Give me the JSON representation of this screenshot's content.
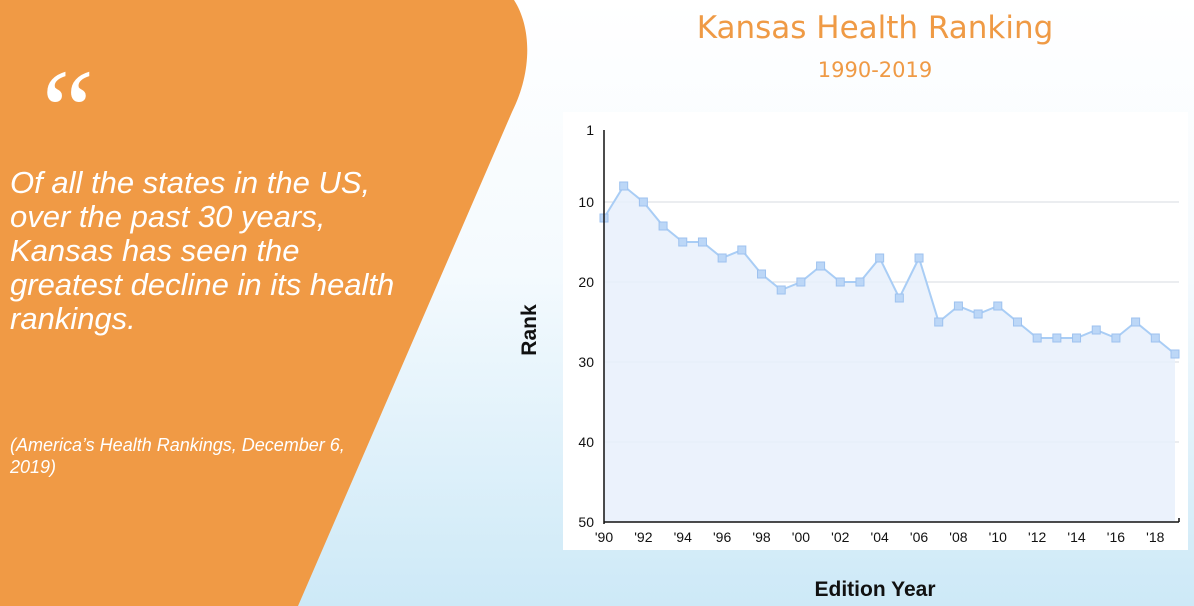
{
  "colors": {
    "accent_orange": "#f09a45",
    "title_orange": "#ef9a45",
    "line_blue": "#a9cdf5",
    "marker_blue": "#bcd7f7",
    "area_blue": "#e7f0fc"
  },
  "quote": {
    "mark": "“",
    "text": "Of all the states in the US, over the past 30 years, Kansas has seen the greatest decline in its health rankings.",
    "source": "(America’s Health Rankings, December 6, 2019)"
  },
  "chart_data": {
    "type": "area",
    "title": "Kansas Health Ranking",
    "subtitle": "1990-2019",
    "xlabel": "Edition Year",
    "ylabel": "Rank",
    "y_inverted": true,
    "ylim": [
      1,
      50
    ],
    "y_ticks": [
      "1",
      "10",
      "20",
      "30",
      "40",
      "50"
    ],
    "xlim": [
      1990,
      2019
    ],
    "x_ticks": [
      "'90",
      "'92",
      "'94",
      "'96",
      "'98",
      "'00",
      "'02",
      "'04",
      "'06",
      "'08",
      "'10",
      "'12",
      "'14",
      "'16",
      "'18"
    ],
    "grid": true,
    "series": [
      {
        "x": [
          1990,
          1991,
          1992,
          1993,
          1994,
          1995,
          1996,
          1997,
          1998,
          1999,
          2000,
          2001,
          2002,
          2003,
          2004,
          2005,
          2006,
          2007,
          2008,
          2009,
          2010,
          2011,
          2012,
          2013,
          2014,
          2015,
          2016,
          2017,
          2018,
          2019
        ],
        "values": [
          12,
          8,
          10,
          13,
          15,
          15,
          17,
          16,
          19,
          21,
          20,
          18,
          20,
          20,
          17,
          22,
          17,
          25,
          23,
          24,
          23,
          25,
          27,
          27,
          27,
          26,
          27,
          25,
          27,
          29
        ]
      }
    ]
  }
}
